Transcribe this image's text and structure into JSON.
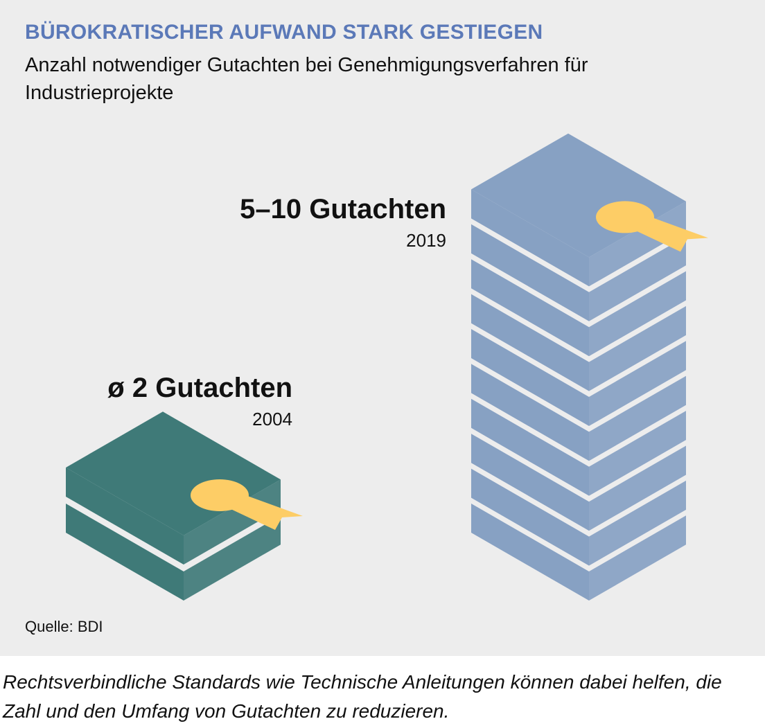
{
  "title": "BÜROKRATISCHER AUFWAND STARK GESTIEGEN",
  "subtitle": "Anzahl notwendiger Gutachten bei Genehmigungsverfahren für Industrieprojekte",
  "source": "Quelle: BDI",
  "footnote": "Rechtsverbindliche Standards wie Technische Anleitungen können dabei helfen, die Zahl und den Umfang von Gutachten zu reduzieren.",
  "colors": {
    "title": "#5b79b8",
    "stack_2004_top": "#3f7a78",
    "stack_2004_side": "#3f7a78",
    "stack_2019_top": "#87a1c3",
    "stack_2019_side": "#87a1c3",
    "seal": "#fdcd66",
    "background": "#ededed"
  },
  "chart_data": {
    "type": "pictogram",
    "categories": [
      "2004",
      "2019"
    ],
    "values": [
      2,
      10
    ],
    "value_labels": [
      "ø 2 Gutachten",
      "5–10 Gutachten"
    ],
    "year_labels": [
      "2004",
      "2019"
    ],
    "legend": "none",
    "grid": false
  }
}
